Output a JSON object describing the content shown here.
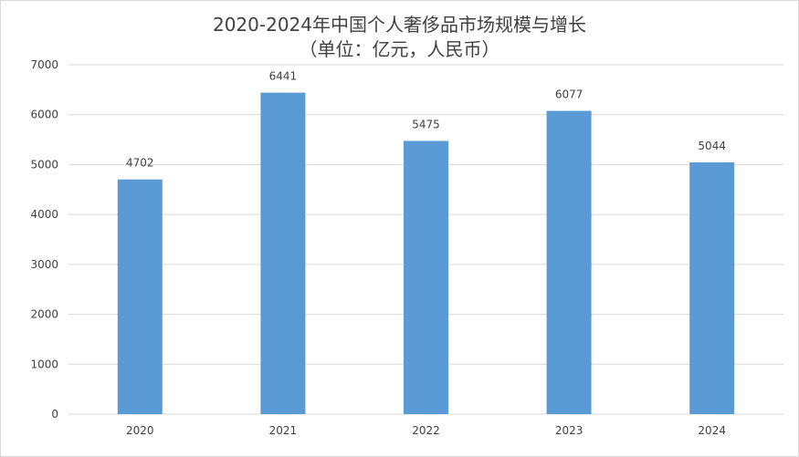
{
  "chart_data": {
    "type": "bar",
    "title": "2020-2024年中国个人奢侈品市场规模与增长",
    "subtitle": "（单位：亿元，人民币）",
    "categories": [
      "2020",
      "2021",
      "2022",
      "2023",
      "2024"
    ],
    "series": [
      {
        "values": [
          4702,
          6441,
          5475,
          6077,
          5044
        ]
      }
    ],
    "data_labels": [
      "4702",
      "6441",
      "5475",
      "6077",
      "5044"
    ],
    "y_ticks": [
      "0",
      "1000",
      "2000",
      "3000",
      "4000",
      "5000",
      "6000",
      "7000"
    ],
    "ylim": [
      0,
      7000
    ],
    "xlabel": "",
    "ylabel": "",
    "grid": true,
    "legend": "none",
    "bar_color": "#5b9bd5",
    "grid_color": "#d9d9d9"
  }
}
